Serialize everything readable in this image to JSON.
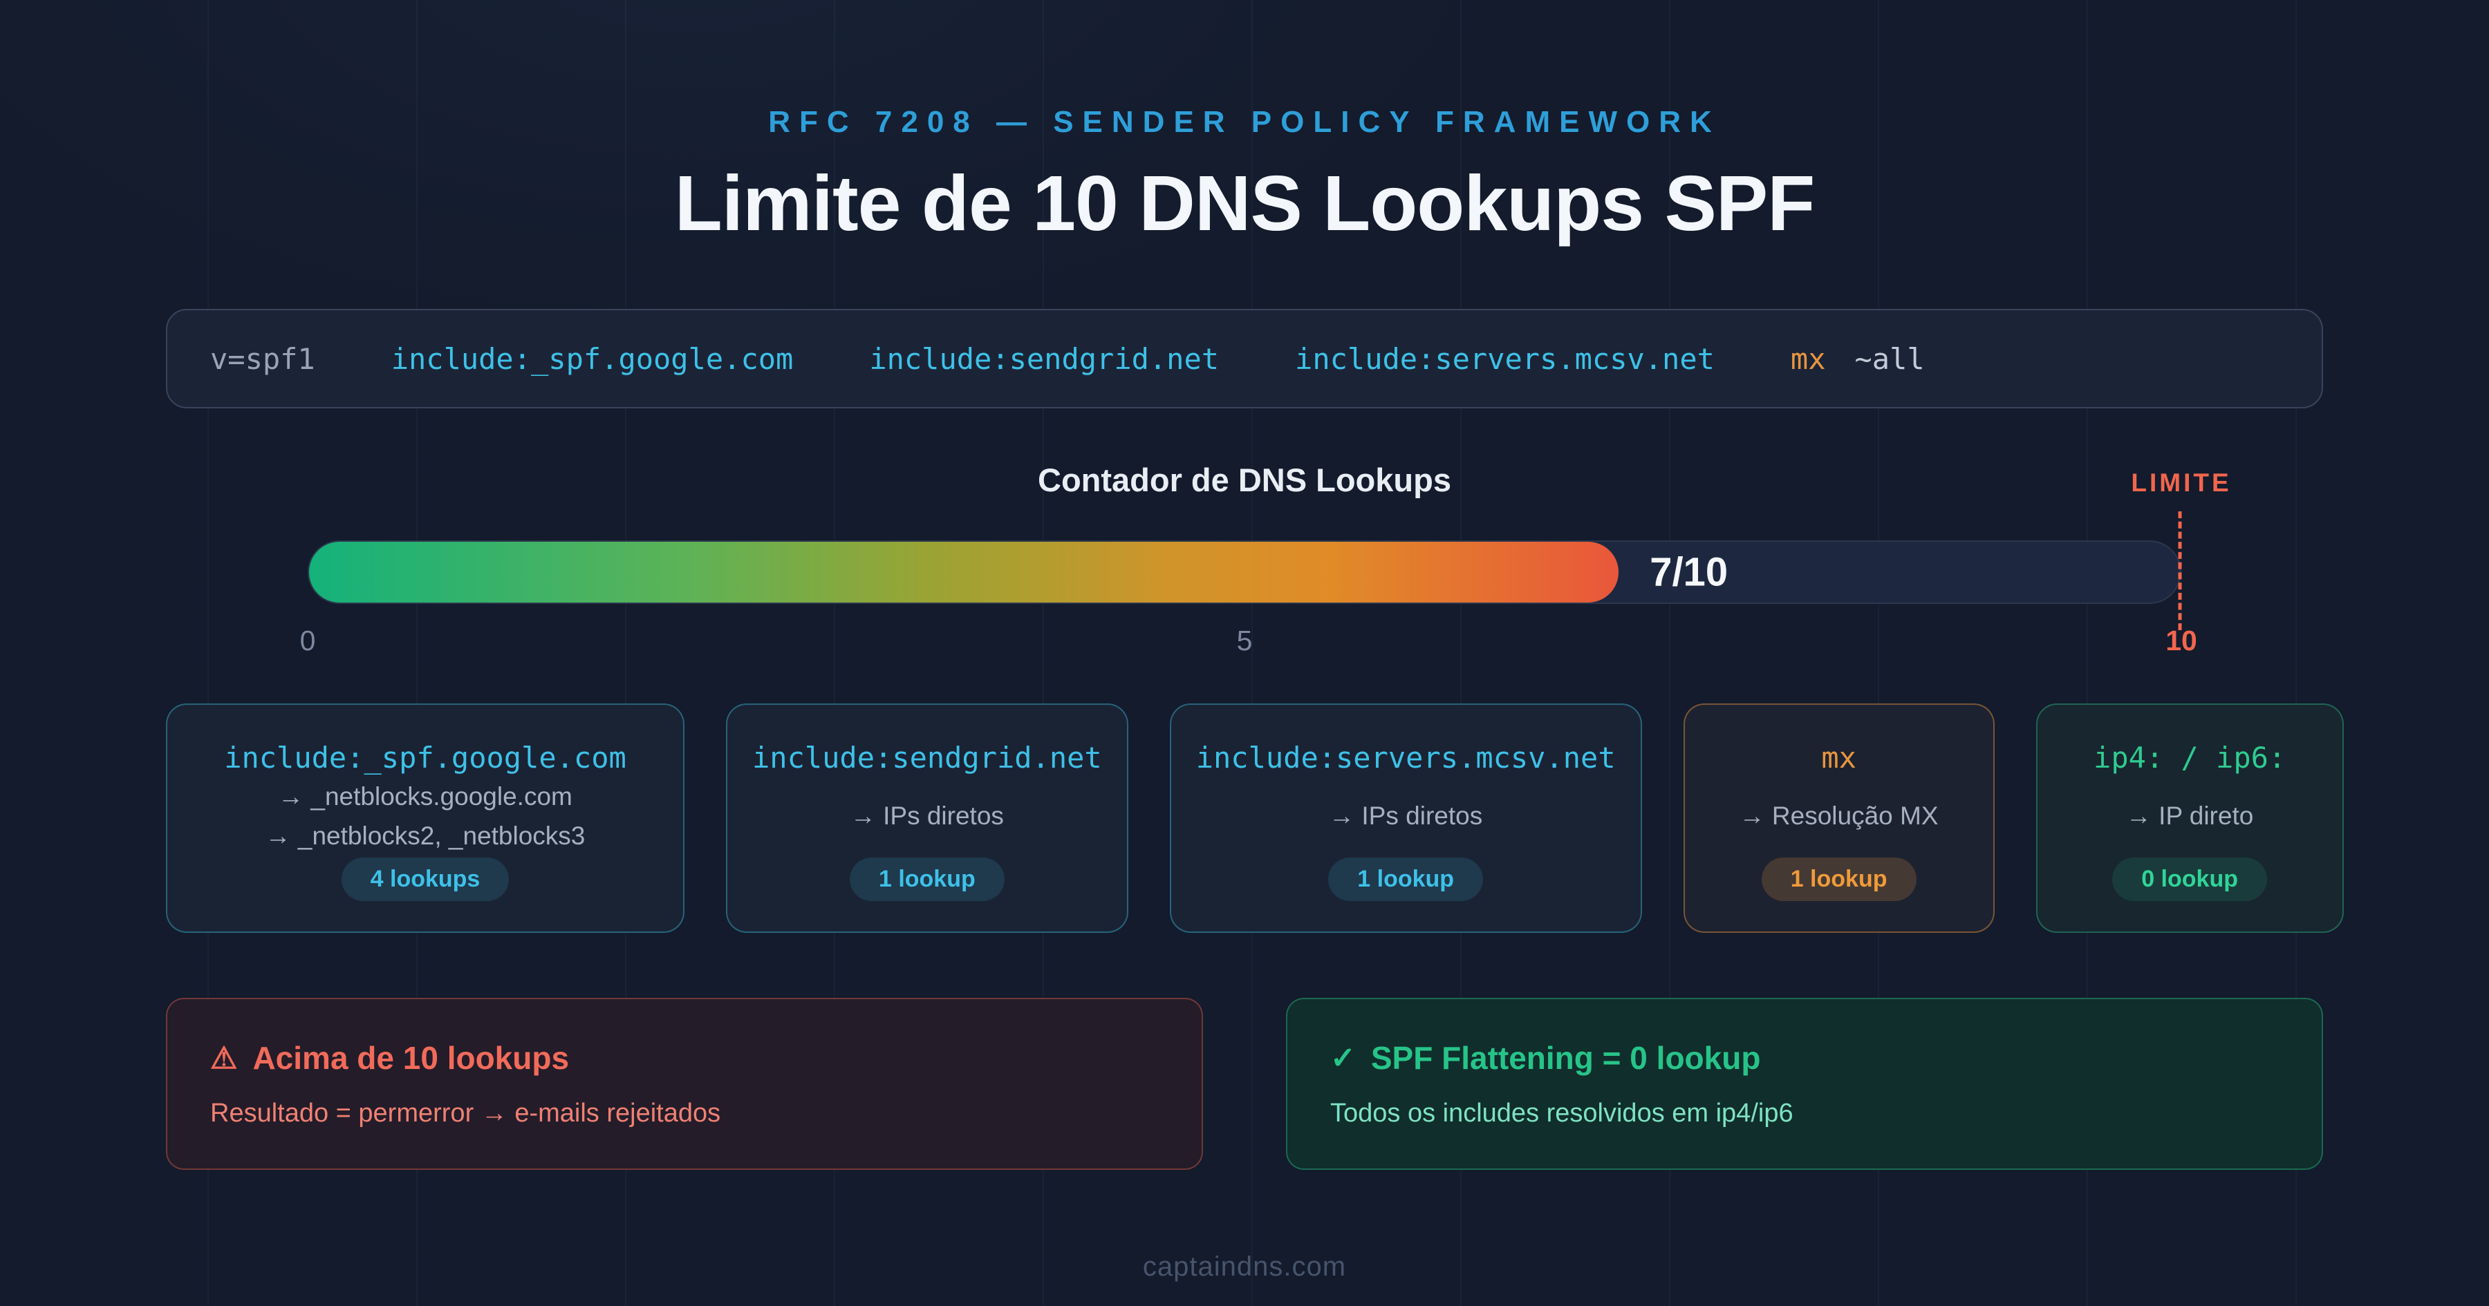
{
  "header": {
    "eyebrow": "RFC 7208 — SENDER POLICY FRAMEWORK",
    "title": "Limite de 10 DNS Lookups SPF"
  },
  "spf_record": {
    "version": "v=spf1",
    "include_google": "include:_spf.google.com",
    "include_sendgrid": "include:sendgrid.net",
    "include_mcsv": "include:servers.mcsv.net",
    "mx": "mx",
    "all": "~all"
  },
  "counter": {
    "title": "Contador de DNS Lookups",
    "value": 7,
    "max": 10,
    "value_label": "7/10",
    "fill_percent": 70,
    "limit_label": "LIMITE",
    "ticks": [
      "0",
      "5",
      "10"
    ]
  },
  "cards": [
    {
      "mechanism": "include:_spf.google.com",
      "lines": [
        "→ _netblocks.google.com",
        "→ _netblocks2, _netblocks3"
      ],
      "badge": "4 lookups",
      "type": "include"
    },
    {
      "mechanism": "include:sendgrid.net",
      "lines": [
        "→ IPs diretos"
      ],
      "badge": "1 lookup",
      "type": "include"
    },
    {
      "mechanism": "include:servers.mcsv.net",
      "lines": [
        "→ IPs diretos"
      ],
      "badge": "1 lookup",
      "type": "include"
    },
    {
      "mechanism": "mx",
      "lines": [
        "→ Resolução MX"
      ],
      "badge": "1 lookup",
      "type": "mx"
    },
    {
      "mechanism": "ip4: / ip6:",
      "lines": [
        "→ IP direto"
      ],
      "badge": "0 lookup",
      "type": "ip"
    }
  ],
  "warning_box": {
    "icon": "⚠",
    "title": "Acima de 10 lookups",
    "subtitle": "Resultado = permerror → e-mails rejeitados"
  },
  "success_box": {
    "icon": "✓",
    "title": "SPF Flattening = 0 lookup",
    "subtitle": "Todos os includes resolvidos em ip4/ip6"
  },
  "footer": {
    "text": "captaindns.com"
  },
  "colors": {
    "background": "#131b2c",
    "accent_blue": "#2e9fd9",
    "cyan": "#3ec1e8",
    "orange": "#e8953f",
    "green": "#2fcb90",
    "red": "#f2664d",
    "gradient_start": "#14b27b",
    "gradient_end": "#e9573a"
  }
}
